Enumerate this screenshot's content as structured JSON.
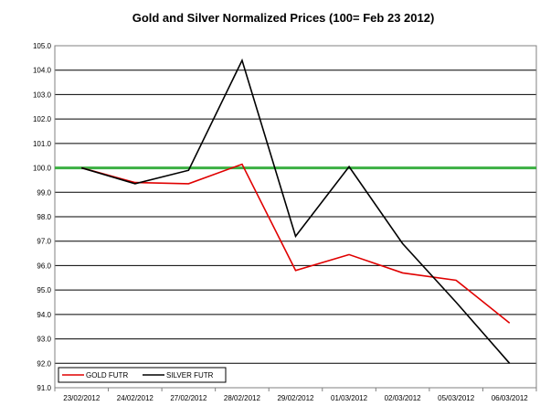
{
  "chart_data": {
    "type": "line",
    "title": "Gold and Silver Normalized Prices  (100= Feb 23 2012)",
    "xlabel": "",
    "ylabel": "",
    "categories": [
      "23/02/2012",
      "24/02/2012",
      "27/02/2012",
      "28/02/2012",
      "29/02/2012",
      "01/03/2012",
      "02/03/2012",
      "05/03/2012",
      "06/03/2012"
    ],
    "ylim": [
      91.0,
      105.0
    ],
    "yticks": [
      "105.0",
      "104.0",
      "103.0",
      "102.0",
      "101.0",
      "100.0",
      "99.0",
      "98.0",
      "97.0",
      "96.0",
      "95.0",
      "94.0",
      "93.0",
      "92.0",
      "91.0"
    ],
    "grid": true,
    "reference_line": {
      "value": 100.0,
      "color": "#3cb043"
    },
    "legend_position": "bottom-left",
    "series": [
      {
        "name": "GOLD  FUTR",
        "color": "#e00000",
        "values": [
          100.0,
          99.4,
          99.35,
          100.15,
          95.8,
          96.45,
          95.7,
          95.4,
          93.65
        ]
      },
      {
        "name": "SILVER  FUTR",
        "color": "#000000",
        "values": [
          100.0,
          99.35,
          99.9,
          104.4,
          97.2,
          100.05,
          96.9,
          94.5,
          92.0
        ]
      }
    ]
  }
}
